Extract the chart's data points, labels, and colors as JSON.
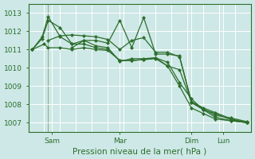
{
  "title": "",
  "xlabel": "Pression niveau de la mer( hPa )",
  "ylabel": "",
  "background_color": "#cde8e6",
  "plot_bg_color": "#cde8e6",
  "grid_color": "#ffffff",
  "line_color": "#2d6e2d",
  "marker": "D",
  "marker_size": 2.2,
  "linewidth": 0.9,
  "ylim": [
    1006.5,
    1013.5
  ],
  "xlim": [
    -2,
    110
  ],
  "x_ticks_pos": [
    10,
    44,
    80,
    96
  ],
  "x_tick_labels": [
    "Sam",
    "Mar",
    "Dim",
    "Lun"
  ],
  "x_vlines": [
    8,
    44,
    80,
    96
  ],
  "y_ticks": [
    1007,
    1008,
    1009,
    1010,
    1011,
    1012,
    1013
  ],
  "series": [
    {
      "x": [
        0,
        6,
        8,
        14,
        20,
        26,
        32,
        38,
        44,
        50,
        56,
        62,
        68,
        74,
        80,
        86,
        92,
        100,
        108
      ],
      "y": [
        1011.0,
        1011.3,
        1011.1,
        1011.1,
        1011.0,
        1011.1,
        1011.0,
        1010.95,
        1010.4,
        1010.4,
        1010.45,
        1010.5,
        1010.1,
        1009.0,
        1007.8,
        1007.5,
        1007.2,
        1007.1,
        1007.0
      ]
    },
    {
      "x": [
        0,
        5,
        8,
        14,
        20,
        26,
        32,
        38,
        44,
        50,
        56,
        62,
        68,
        74,
        80,
        86,
        92,
        100,
        108
      ],
      "y": [
        1011.0,
        1011.6,
        1012.6,
        1012.2,
        1011.3,
        1011.3,
        1011.1,
        1011.0,
        1010.4,
        1010.4,
        1010.45,
        1010.55,
        1010.1,
        1009.9,
        1008.1,
        1007.7,
        1007.5,
        1007.15,
        1007.0
      ]
    },
    {
      "x": [
        0,
        5,
        8,
        14,
        20,
        26,
        32,
        38,
        44,
        50,
        56,
        62,
        68,
        74,
        80,
        86,
        92,
        100,
        108
      ],
      "y": [
        1011.0,
        1011.7,
        1012.8,
        1011.7,
        1011.3,
        1011.5,
        1011.2,
        1011.1,
        1010.35,
        1010.5,
        1010.5,
        1010.55,
        1010.3,
        1009.2,
        1008.3,
        1007.7,
        1007.3,
        1007.1,
        1007.0
      ]
    },
    {
      "x": [
        8,
        14,
        20,
        26,
        32,
        38,
        44,
        50,
        56,
        62,
        68,
        74,
        80,
        86,
        92,
        100,
        108
      ],
      "y": [
        1011.5,
        1011.75,
        1011.8,
        1011.75,
        1011.7,
        1011.55,
        1011.0,
        1011.5,
        1011.65,
        1010.85,
        1010.85,
        1010.6,
        1008.1,
        1007.75,
        1007.4,
        1007.25,
        1007.05
      ]
    },
    {
      "x": [
        20,
        26,
        32,
        38,
        44,
        50,
        56,
        62,
        68,
        74,
        80,
        86,
        92,
        100,
        108
      ],
      "y": [
        1011.1,
        1011.5,
        1011.5,
        1011.35,
        1012.6,
        1011.1,
        1012.75,
        1010.75,
        1010.75,
        1010.65,
        1008.15,
        1007.8,
        1007.55,
        1007.2,
        1007.0
      ]
    }
  ]
}
